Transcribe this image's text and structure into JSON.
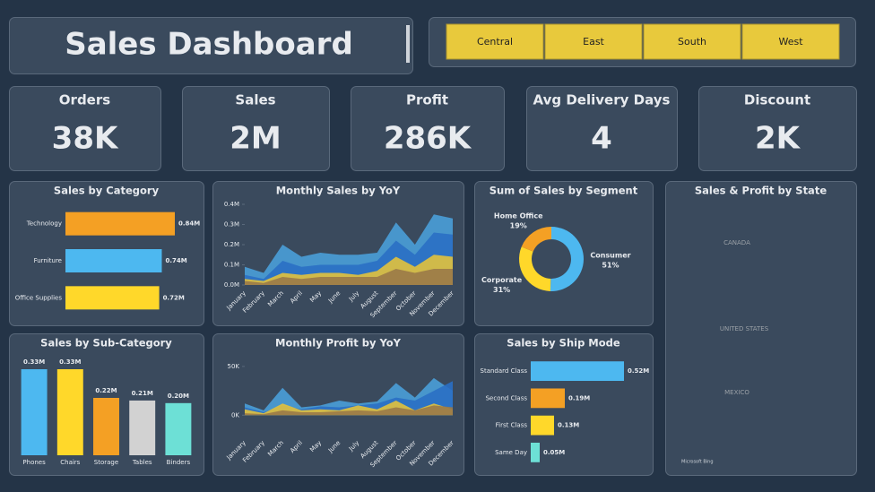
{
  "header": {
    "title": "Sales Dashboard"
  },
  "slicers": [
    "Central",
    "East",
    "South",
    "West"
  ],
  "kpis": [
    {
      "label": "Orders",
      "value": "38K"
    },
    {
      "label": "Sales",
      "value": "2M"
    },
    {
      "label": "Profit",
      "value": "286K"
    },
    {
      "label": "Avg Delivery Days",
      "value": "4"
    },
    {
      "label": "Discount",
      "value": "2K"
    }
  ],
  "chart_data": [
    {
      "type": "bar",
      "orientation": "horizontal",
      "title": "Sales by Category",
      "categories": [
        "Technology",
        "Furniture",
        "Office Supplies"
      ],
      "values": [
        0.84,
        0.74,
        0.72
      ],
      "value_labels": [
        "0.84M",
        "0.74M",
        "0.72M"
      ],
      "colors": [
        "#f4a024",
        "#4db8f0",
        "#ffd82a"
      ]
    },
    {
      "type": "area",
      "title": "Monthly Sales by YoY",
      "categories": [
        "January",
        "February",
        "March",
        "April",
        "May",
        "June",
        "July",
        "August",
        "September",
        "October",
        "November",
        "December"
      ],
      "ylim": [
        0,
        0.4
      ],
      "yticks": [
        {
          "value": 0,
          "label": "0.0M"
        },
        {
          "value": 0.1,
          "label": "0.1M"
        },
        {
          "value": 0.2,
          "label": "0.2M"
        },
        {
          "value": 0.3,
          "label": "0.3M"
        },
        {
          "value": 0.4,
          "label": "0.4M"
        }
      ],
      "series": [
        {
          "color": "#4a9fd8",
          "values": [
            0.09,
            0.06,
            0.2,
            0.14,
            0.16,
            0.15,
            0.15,
            0.16,
            0.31,
            0.2,
            0.35,
            0.33
          ]
        },
        {
          "color": "#2a6fc4",
          "values": [
            0.05,
            0.03,
            0.12,
            0.09,
            0.1,
            0.1,
            0.1,
            0.12,
            0.22,
            0.15,
            0.26,
            0.25
          ]
        },
        {
          "color": "#e2c23c",
          "values": [
            0.03,
            0.02,
            0.06,
            0.05,
            0.06,
            0.06,
            0.05,
            0.07,
            0.14,
            0.09,
            0.15,
            0.14
          ]
        },
        {
          "color": "#9a7a48",
          "values": [
            0.02,
            0.01,
            0.04,
            0.03,
            0.04,
            0.04,
            0.04,
            0.04,
            0.08,
            0.06,
            0.08,
            0.08
          ]
        }
      ]
    },
    {
      "type": "pie",
      "title": "Sum of Sales by Segment",
      "categories": [
        "Consumer",
        "Corporate",
        "Home Office"
      ],
      "values": [
        51,
        31,
        19
      ],
      "value_labels": [
        "51%",
        "31%",
        "19%"
      ],
      "colors": [
        "#4db8f0",
        "#ffd82a",
        "#f4a024"
      ]
    },
    {
      "type": "map",
      "title": "Sales & Profit by State",
      "labels": [
        "CANADA",
        "UNITED STATES",
        "MEXICO"
      ],
      "attribution": "Microsoft Bing"
    },
    {
      "type": "bar",
      "orientation": "vertical",
      "title": "Sales by Sub-Category",
      "categories": [
        "Phones",
        "Chairs",
        "Storage",
        "Tables",
        "Binders"
      ],
      "values": [
        0.33,
        0.33,
        0.22,
        0.21,
        0.2
      ],
      "value_labels": [
        "0.33M",
        "0.33M",
        "0.22M",
        "0.21M",
        "0.20M"
      ],
      "colors": [
        "#4db8f0",
        "#ffd82a",
        "#f4a024",
        "#d2d2d2",
        "#6de0d6"
      ]
    },
    {
      "type": "area",
      "title": "Monthly Profit by YoY",
      "categories": [
        "January",
        "February",
        "March",
        "April",
        "May",
        "June",
        "July",
        "August",
        "September",
        "October",
        "November",
        "December"
      ],
      "ylim": [
        -20,
        60
      ],
      "yticks": [
        {
          "value": 0,
          "label": "0K"
        },
        {
          "value": 50,
          "label": "50K"
        }
      ],
      "series": [
        {
          "color": "#4a9fd8",
          "values": [
            12,
            5,
            28,
            8,
            10,
            15,
            12,
            14,
            33,
            18,
            38,
            25
          ]
        },
        {
          "color": "#2a6fc4",
          "values": [
            8,
            3,
            10,
            6,
            9,
            8,
            10,
            12,
            18,
            15,
            25,
            35
          ]
        },
        {
          "color": "#e2c23c",
          "values": [
            6,
            2,
            12,
            5,
            6,
            5,
            10,
            6,
            15,
            5,
            12,
            6
          ]
        },
        {
          "color": "#9a7a48",
          "values": [
            2,
            1,
            5,
            3,
            3,
            4,
            5,
            4,
            8,
            5,
            10,
            8
          ]
        }
      ]
    },
    {
      "type": "bar",
      "orientation": "horizontal",
      "title": "Sales by Ship Mode",
      "categories": [
        "Standard Class",
        "Second Class",
        "First Class",
        "Same Day"
      ],
      "values": [
        0.52,
        0.19,
        0.13,
        0.05
      ],
      "value_labels": [
        "0.52M",
        "0.19M",
        "0.13M",
        "0.05M"
      ],
      "colors": [
        "#4db8f0",
        "#f4a024",
        "#ffd82a",
        "#6de0d6"
      ]
    }
  ]
}
